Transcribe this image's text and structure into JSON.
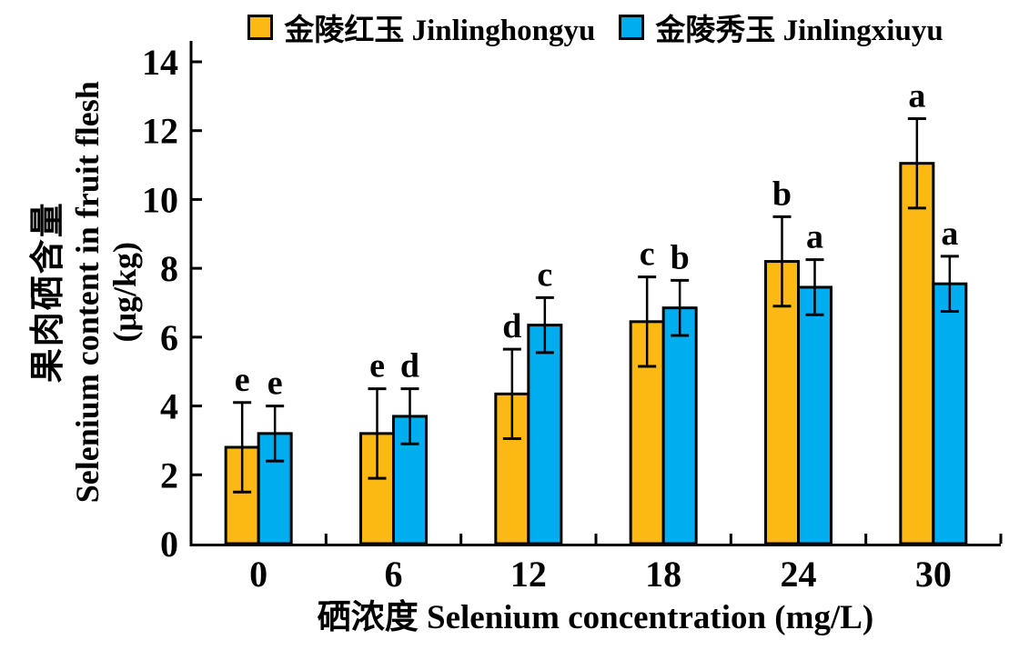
{
  "legend": {
    "items": [
      {
        "label": "金陵红玉 Jinlinghongyu",
        "color": "#FDB913"
      },
      {
        "label": "金陵秀玉 Jinlingxiuyu",
        "color": "#00AEEF"
      }
    ]
  },
  "chart_data": {
    "type": "bar",
    "title": "",
    "categories": [
      "0",
      "6",
      "12",
      "18",
      "24",
      "30"
    ],
    "xlabel": "硒浓度 Selenium concentration (mg/L)",
    "ylabel_zh": "果肉硒含量",
    "ylabel_en": "Selenium content in fruit flesh",
    "ylabel_unit": "(μg/kg)",
    "ylim": [
      0,
      14
    ],
    "ytick_step": 2,
    "grid": false,
    "legend_position": "top",
    "bar_border_color": "#000000",
    "error_bar_color": "#000000",
    "series": [
      {
        "name": "金陵红玉 Jinlinghongyu",
        "slug": "jinlinghongyu",
        "color": "#FDB913",
        "values": [
          2.8,
          3.2,
          4.35,
          6.45,
          8.2,
          11.05
        ],
        "errors": [
          1.3,
          1.3,
          1.3,
          1.3,
          1.3,
          1.3
        ],
        "sig_letters": [
          "e",
          "e",
          "d",
          "c",
          "b",
          "a"
        ]
      },
      {
        "name": "金陵秀玉 Jinlingxiuyu",
        "slug": "jinlingxiuyu",
        "color": "#00AEEF",
        "values": [
          3.2,
          3.7,
          6.35,
          6.85,
          7.45,
          7.55
        ],
        "errors": [
          0.8,
          0.8,
          0.8,
          0.8,
          0.8,
          0.8
        ],
        "sig_letters": [
          "e",
          "d",
          "c",
          "b",
          "a",
          "a"
        ]
      }
    ]
  }
}
